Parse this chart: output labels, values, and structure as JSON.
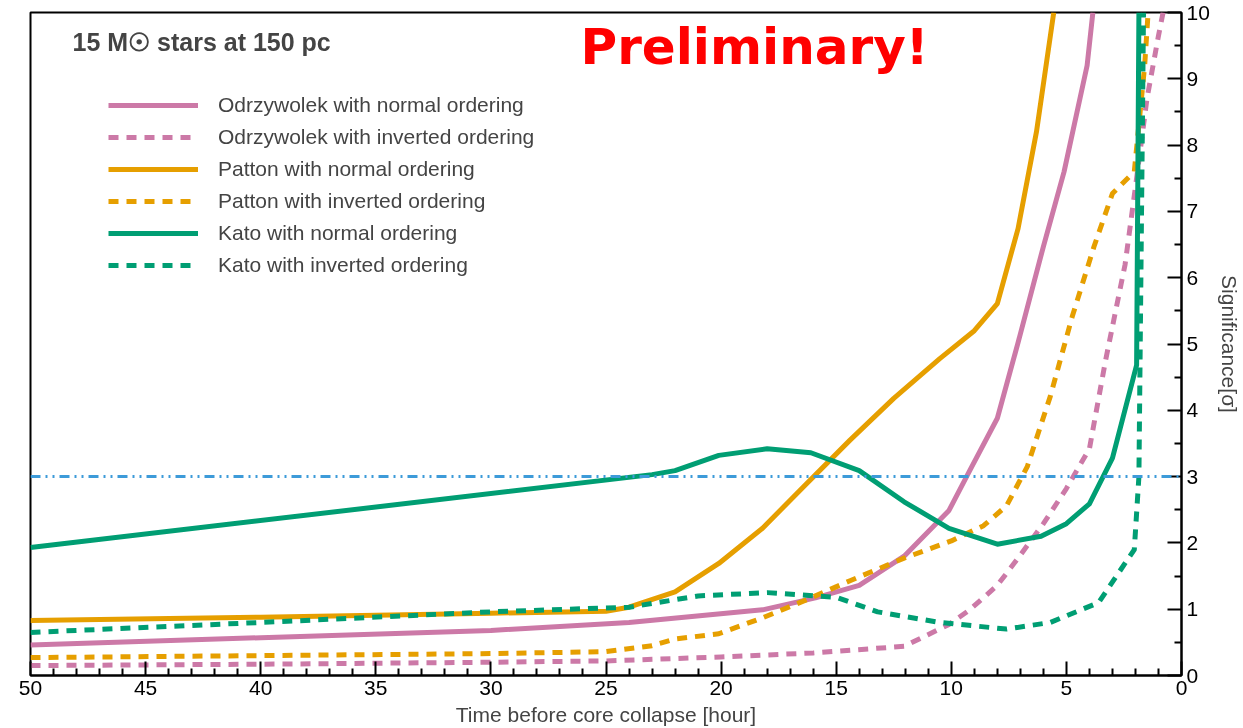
{
  "chart_data": {
    "type": "line",
    "title": "15 M☉ stars at 150 pc",
    "xlabel": "Time before core collapse [hour]",
    "ylabel": "Significance[σ]",
    "xlim": [
      50,
      0
    ],
    "ylim": [
      0,
      10
    ],
    "xticks": [
      50,
      45,
      40,
      35,
      30,
      25,
      20,
      15,
      10,
      5,
      0
    ],
    "yticks": [
      0,
      1,
      2,
      3,
      4,
      5,
      6,
      7,
      8,
      9,
      10
    ],
    "grid": false,
    "legend": "top left",
    "marker": "none",
    "annotations": [
      "Preliminary!"
    ],
    "ref_lines": [
      {
        "axis": "y",
        "value": 3,
        "color": "#3d9bd9",
        "line_style": "dashdot"
      }
    ],
    "series": [
      {
        "name": "Odrzywolek with normal ordering",
        "color": "#cc79a7",
        "line_style": "solid",
        "x": [
          50,
          40,
          30,
          24,
          18.2,
          15.9,
          14,
          12.05,
          10.1,
          9.2,
          8,
          7.1,
          6,
          5.1,
          4.1,
          3.85
        ],
        "values": [
          0.46,
          0.57,
          0.68,
          0.8,
          0.99,
          1.17,
          1.36,
          1.8,
          2.49,
          3.09,
          3.88,
          5.02,
          6.47,
          7.6,
          9.2,
          10
        ]
      },
      {
        "name": "Odrzywolek with inverted ordering",
        "color": "#cc79a7",
        "line_style": "dashed",
        "x": [
          50,
          40,
          30,
          25,
          20,
          16,
          12.05,
          10.1,
          9.2,
          8,
          7.1,
          6,
          5,
          4,
          3.3,
          2.45,
          1.95,
          1.5,
          1,
          0.8
        ],
        "values": [
          0.15,
          0.17,
          0.2,
          0.22,
          0.28,
          0.34,
          0.44,
          0.77,
          0.99,
          1.36,
          1.77,
          2.29,
          2.82,
          3.42,
          4.75,
          6.2,
          7.5,
          8.7,
          9.65,
          10
        ]
      },
      {
        "name": "Patton with normal ordering",
        "color": "#e69f00",
        "line_style": "solid",
        "x": [
          50,
          40,
          30,
          25,
          24,
          22,
          20.1,
          18.2,
          16.3,
          14.4,
          12.5,
          10.5,
          9,
          8,
          7.1,
          6.3,
          5.55
        ],
        "values": [
          0.83,
          0.88,
          0.94,
          0.97,
          1.03,
          1.26,
          1.69,
          2.22,
          2.89,
          3.55,
          4.18,
          4.78,
          5.2,
          5.61,
          6.74,
          8.2,
          10
        ]
      },
      {
        "name": "Patton with inverted ordering",
        "color": "#e69f00",
        "line_style": "dashed",
        "x": [
          50,
          40,
          30,
          25,
          23,
          22,
          20.1,
          18.2,
          16.3,
          14.4,
          12.05,
          10,
          8.6,
          7.6,
          6.7,
          5.7,
          4.75,
          3.8,
          3,
          2.05,
          1.6,
          1.45
        ],
        "values": [
          0.27,
          0.3,
          0.33,
          0.36,
          0.45,
          0.55,
          0.63,
          0.87,
          1.14,
          1.43,
          1.77,
          2.03,
          2.26,
          2.56,
          3.15,
          4.21,
          5.41,
          6.47,
          7.27,
          7.6,
          9.2,
          10
        ]
      },
      {
        "name": "Kato with normal ordering",
        "color": "#009e73",
        "line_style": "solid",
        "x": [
          50,
          23,
          22,
          20.1,
          18,
          16.1,
          14,
          12.05,
          10.1,
          8,
          6.1,
          5,
          4,
          3,
          1.95,
          1.85
        ],
        "values": [
          1.93,
          3.03,
          3.09,
          3.32,
          3.42,
          3.36,
          3.09,
          2.62,
          2.22,
          1.98,
          2.1,
          2.29,
          2.59,
          3.28,
          4.68,
          10
        ]
      },
      {
        "name": "Kato with inverted ordering",
        "color": "#009e73",
        "line_style": "dashed",
        "x": [
          50,
          40,
          30,
          24,
          21,
          18,
          15,
          13.2,
          10.5,
          7.6,
          5.7,
          3.6,
          2.05,
          1.85,
          1.65
        ],
        "values": [
          0.65,
          0.8,
          0.96,
          1.03,
          1.2,
          1.25,
          1.18,
          0.96,
          0.8,
          0.7,
          0.8,
          1.1,
          1.9,
          3.0,
          10
        ]
      }
    ]
  }
}
